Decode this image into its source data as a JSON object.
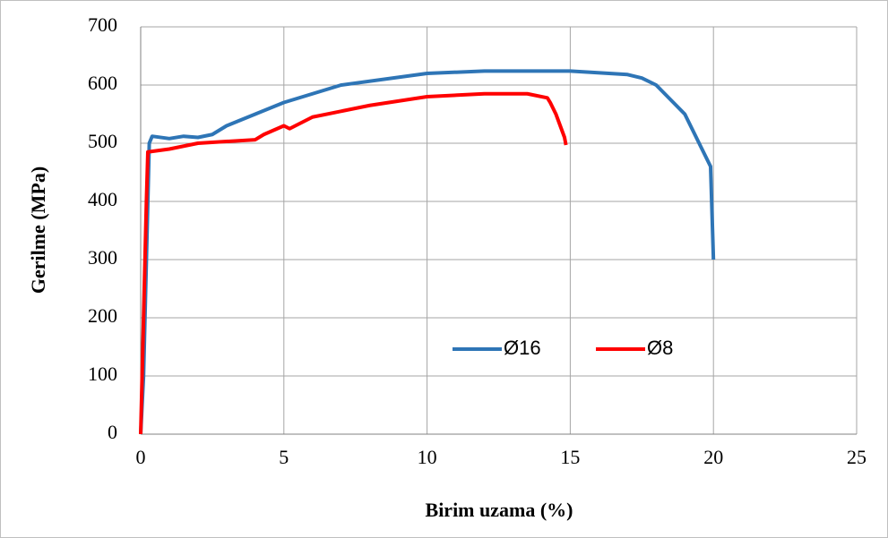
{
  "chart_data": {
    "type": "line",
    "xlabel": "Birim uzama (%)",
    "ylabel": "Gerilme (MPa)",
    "xlim": [
      0,
      25
    ],
    "xticks": [
      0,
      5,
      10,
      15,
      20,
      25
    ],
    "ylim": [
      0,
      700
    ],
    "yticks": [
      0,
      100,
      200,
      300,
      400,
      500,
      600,
      700
    ],
    "grid": true,
    "legend": "bottom",
    "series": [
      {
        "name": "Ø16",
        "color": "#2e75b6",
        "x": [
          0,
          0.1,
          0.2,
          0.3,
          0.4,
          1,
          1.5,
          2,
          2.5,
          3,
          3.5,
          4,
          5,
          7,
          10,
          12,
          15,
          17,
          17.5,
          18,
          19,
          19.8,
          19.9,
          20
        ],
        "values": [
          0,
          100,
          300,
          500,
          512,
          508,
          512,
          510,
          515,
          530,
          540,
          550,
          570,
          600,
          620,
          624,
          624,
          618,
          612,
          600,
          550,
          470,
          460,
          300
        ]
      },
      {
        "name": "Ø8",
        "color": "#ff0000",
        "x": [
          0,
          0.1,
          0.2,
          0.25,
          1,
          2,
          3,
          4,
          4.3,
          5,
          5.2,
          6,
          8,
          10,
          12,
          13.5,
          14.2,
          14.3,
          14.5,
          14.8,
          14.85
        ],
        "values": [
          0,
          200,
          400,
          485,
          490,
          500,
          503,
          506,
          515,
          530,
          525,
          545,
          565,
          580,
          585,
          585,
          578,
          570,
          550,
          510,
          497
        ]
      }
    ]
  }
}
